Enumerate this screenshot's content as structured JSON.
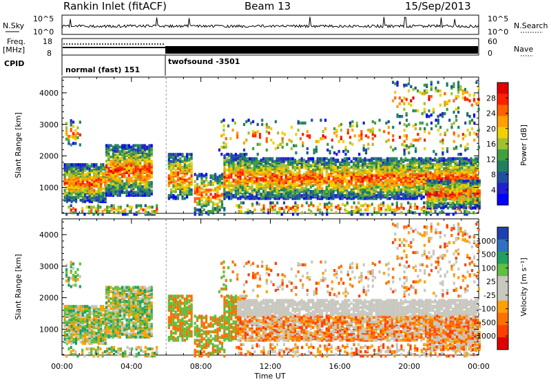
{
  "header": {
    "station": "Rankin Inlet (fitACF)",
    "beam": "Beam 13",
    "date": "15/Sep/2013"
  },
  "noise_panel": {
    "left_label": "N.Sky",
    "right_label": "N.Search",
    "left_ticks": [
      "10^5",
      "10^0"
    ],
    "right_ticks": [
      "10^5",
      "10^0"
    ]
  },
  "freq_panel": {
    "left_label": "Freq.",
    "left_unit": "[MHz]",
    "right_label": "Nave",
    "left_ticks": [
      "18",
      "8"
    ],
    "right_ticks": [
      "60",
      "0"
    ]
  },
  "cpid": {
    "label": "CPID",
    "modes": [
      {
        "name": "normal (fast) 151",
        "start_hour": 0,
        "end_hour": 6.0
      },
      {
        "name": "twofsound -3501",
        "start_hour": 6.0,
        "end_hour": 24
      }
    ]
  },
  "chart_data": [
    {
      "type": "heatmap",
      "name": "power",
      "xlabel": "",
      "ylabel": "Slant Range [km]",
      "xlim": [
        0,
        24
      ],
      "ylim": [
        180,
        4500
      ],
      "yticks": [
        "1000",
        "2000",
        "3000",
        "4000"
      ],
      "colorbar": {
        "label": "Power [dB]",
        "ticks": [
          "28",
          "24",
          "20",
          "16",
          "12",
          "8",
          "4"
        ],
        "colors": [
          "#e00000",
          "#ff2000",
          "#ff6000",
          "#ffa000",
          "#f0d000",
          "#a0c030",
          "#40a040",
          "#208060",
          "#2050a0",
          "#2020d0",
          "#0000ff"
        ]
      }
    },
    {
      "type": "heatmap",
      "name": "velocity",
      "xlabel": "Time UT",
      "ylabel": "Slant Range [km]",
      "xlim": [
        0,
        24
      ],
      "ylim": [
        180,
        4500
      ],
      "yticks": [
        "1000",
        "2000",
        "3000",
        "4000"
      ],
      "xticks": [
        "00:00",
        "04:00",
        "08:00",
        "12:00",
        "16:00",
        "20:00",
        "00:00"
      ],
      "colorbar": {
        "label": "Velocity [m s⁻¹]",
        "ticks": [
          "1000",
          "500",
          "100",
          "25",
          "-25",
          "-100",
          "-500",
          "-1000"
        ],
        "colors": [
          "#2040b0",
          "#3070c0",
          "#20a060",
          "#60c040",
          "#c8c8c0",
          "#c8c8c0",
          "#ffa000",
          "#ff7000",
          "#ff4000",
          "#e00000"
        ]
      }
    }
  ]
}
